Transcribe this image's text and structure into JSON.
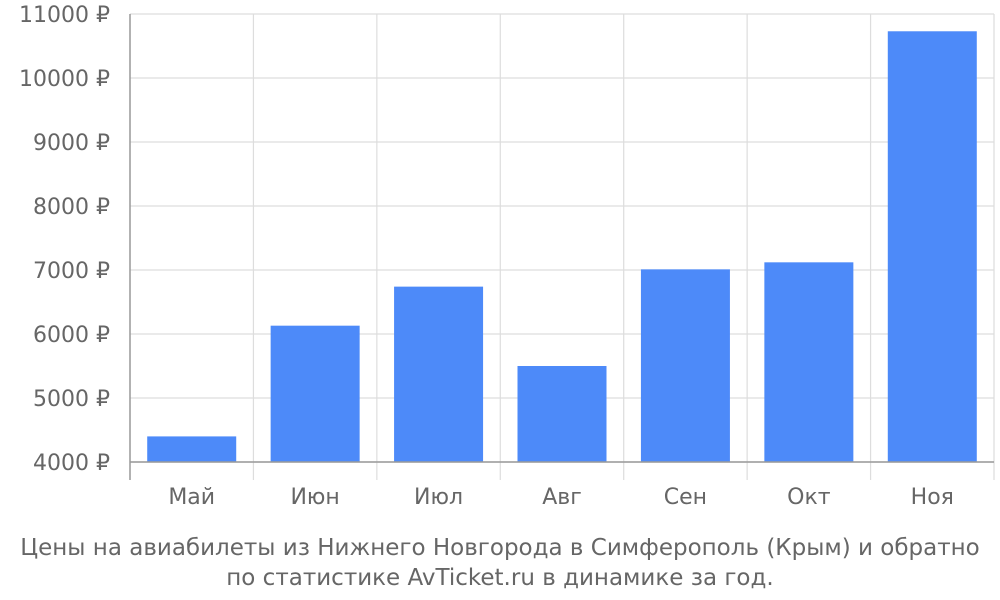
{
  "chart_data": {
    "type": "bar",
    "categories": [
      "Май",
      "Июн",
      "Июл",
      "Авг",
      "Сен",
      "Окт",
      "Ноя"
    ],
    "values": [
      4400,
      6130,
      6740,
      5500,
      7010,
      7120,
      10730
    ],
    "y_ticks": [
      "4000 ₽",
      "5000 ₽",
      "6000 ₽",
      "7000 ₽",
      "8000 ₽",
      "9000 ₽",
      "10000 ₽",
      "11000 ₽"
    ],
    "ylim": [
      4000,
      11000
    ],
    "y_step": 1000,
    "grid": true,
    "bar_color": "#4d8af9"
  },
  "caption": {
    "line1": "Цены на авиабилеты из Нижнего Новгорода в Симферополь (Крым) и обратно",
    "line2": "по статистике AvTicket.ru в динамике за год."
  }
}
